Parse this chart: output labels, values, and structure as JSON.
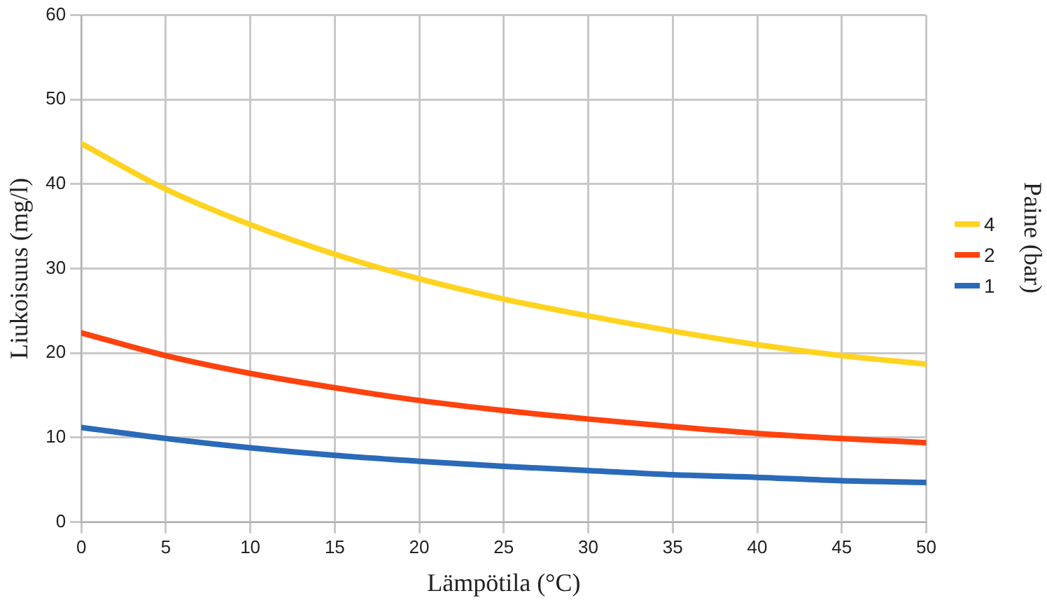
{
  "chart_data": {
    "type": "line",
    "xlabel": "Lämpötila (°C)",
    "ylabel": "Liukoisuus (mg/l)",
    "legend_title": "Paine (bar)",
    "x": [
      0,
      5,
      10,
      15,
      20,
      25,
      30,
      35,
      40,
      45,
      50
    ],
    "series": [
      {
        "name": "4",
        "color": "#ffd320",
        "values": [
          44.8,
          39.4,
          35.2,
          31.7,
          28.8,
          26.4,
          24.4,
          22.6,
          21.0,
          19.7,
          18.7
        ]
      },
      {
        "name": "2",
        "color": "#ff420e",
        "values": [
          22.4,
          19.7,
          17.6,
          15.9,
          14.4,
          13.2,
          12.2,
          11.3,
          10.5,
          9.9,
          9.4
        ]
      },
      {
        "name": "1",
        "color": "#2a6ab8",
        "values": [
          11.2,
          9.9,
          8.8,
          7.9,
          7.2,
          6.6,
          6.1,
          5.6,
          5.3,
          4.9,
          4.7
        ]
      }
    ],
    "xlim": [
      0,
      50
    ],
    "xticks": [
      0,
      5,
      10,
      15,
      20,
      25,
      30,
      35,
      40,
      45,
      50
    ],
    "ylim": [
      0,
      60
    ],
    "yticks": [
      0,
      10,
      20,
      30,
      40,
      50,
      60
    ],
    "grid": true,
    "legend": "right",
    "marker": "none",
    "line_style": "solid"
  }
}
